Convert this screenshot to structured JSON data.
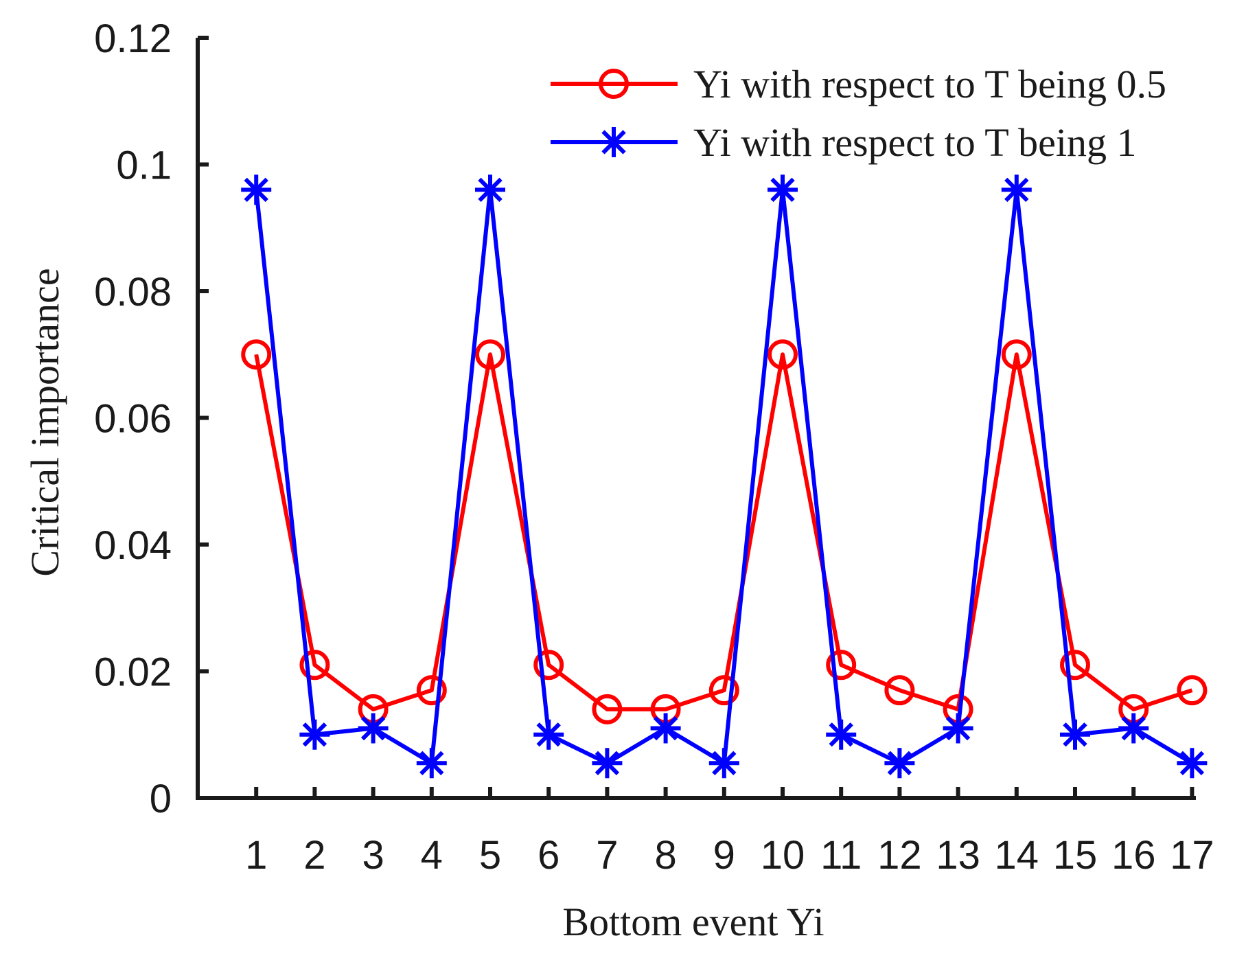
{
  "chart_data": {
    "type": "line",
    "title": "",
    "xlabel": "Bottom event Yi",
    "ylabel": "Critical importance",
    "categories": [
      "1",
      "2",
      "3",
      "4",
      "5",
      "6",
      "7",
      "8",
      "9",
      "10",
      "11",
      "12",
      "13",
      "14",
      "15",
      "16",
      "17"
    ],
    "x": [
      1,
      2,
      3,
      4,
      5,
      6,
      7,
      8,
      9,
      10,
      11,
      12,
      13,
      14,
      15,
      16,
      17
    ],
    "xlim": [
      0,
      17
    ],
    "ylim": [
      0,
      0.12
    ],
    "yticks": [
      0,
      0.02,
      0.04,
      0.06,
      0.08,
      0.1,
      0.12
    ],
    "ytick_labels": [
      "0",
      "0.02",
      "0.04",
      "0.06",
      "0.08",
      "0.1",
      "0.12"
    ],
    "grid": false,
    "legend_position": "top-right",
    "series": [
      {
        "name": "Yi with respect to T being 0.5",
        "color": "#ff0000",
        "marker": "circle",
        "values": [
          0.07,
          0.021,
          0.014,
          0.017,
          0.07,
          0.021,
          0.014,
          0.014,
          0.017,
          0.07,
          0.021,
          0.017,
          0.014,
          0.07,
          0.021,
          0.014,
          0.017
        ]
      },
      {
        "name": "Yi with respect to T being 1",
        "color": "#0000ff",
        "marker": "asterisk",
        "values": [
          0.096,
          0.01,
          0.011,
          0.0055,
          0.096,
          0.01,
          0.0055,
          0.011,
          0.0055,
          0.096,
          0.01,
          0.0055,
          0.011,
          0.096,
          0.01,
          0.011,
          0.0055
        ]
      }
    ]
  }
}
